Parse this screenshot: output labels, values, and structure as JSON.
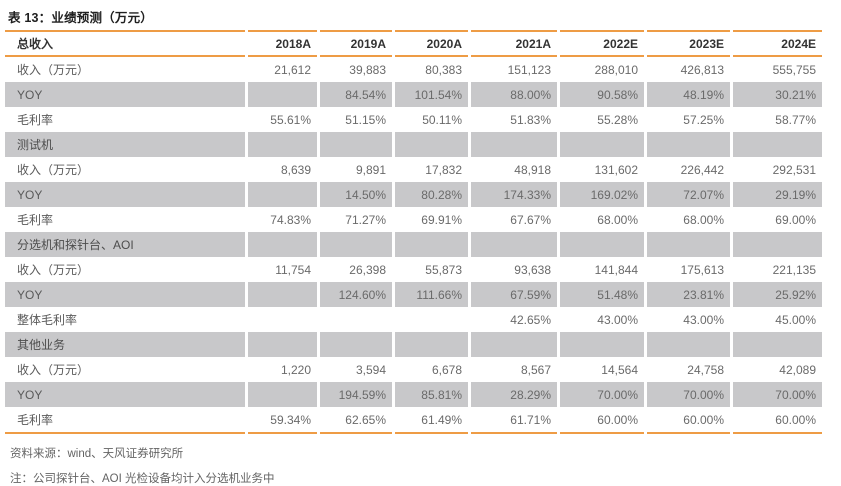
{
  "title": "表 13：业绩预测（万元）",
  "colors": {
    "accent_orange": "#ee9c45",
    "shaded_row": "#c8c8ca",
    "title_text": "#1f1f1f",
    "body_text": "#6a6a6a"
  },
  "chart_data": {
    "type": "table",
    "title": "表 13：业绩预测（万元）",
    "columns": [
      "总收入",
      "2018A",
      "2019A",
      "2020A",
      "2021A",
      "2022E",
      "2023E",
      "2024E"
    ],
    "rows": [
      {
        "type": "data",
        "label": "收入（万元）",
        "values": [
          "21,612",
          "39,883",
          "80,383",
          "151,123",
          "288,010",
          "426,813",
          "555,755"
        ]
      },
      {
        "type": "shaded",
        "label": "YOY",
        "values": [
          "",
          "84.54%",
          "101.54%",
          "88.00%",
          "90.58%",
          "48.19%",
          "30.21%"
        ]
      },
      {
        "type": "data",
        "label": "毛利率",
        "values": [
          "55.61%",
          "51.15%",
          "50.11%",
          "51.83%",
          "55.28%",
          "57.25%",
          "58.77%"
        ]
      },
      {
        "type": "section",
        "label": "测试机",
        "values": [
          "",
          "",
          "",
          "",
          "",
          "",
          ""
        ]
      },
      {
        "type": "data",
        "label": "收入（万元）",
        "values": [
          "8,639",
          "9,891",
          "17,832",
          "48,918",
          "131,602",
          "226,442",
          "292,531"
        ]
      },
      {
        "type": "shaded",
        "label": "YOY",
        "values": [
          "",
          "14.50%",
          "80.28%",
          "174.33%",
          "169.02%",
          "72.07%",
          "29.19%"
        ]
      },
      {
        "type": "data",
        "label": "毛利率",
        "values": [
          "74.83%",
          "71.27%",
          "69.91%",
          "67.67%",
          "68.00%",
          "68.00%",
          "69.00%"
        ]
      },
      {
        "type": "section",
        "label": "分选机和探针台、AOI",
        "values": [
          "",
          "",
          "",
          "",
          "",
          "",
          ""
        ]
      },
      {
        "type": "data",
        "label": "收入（万元）",
        "values": [
          "11,754",
          "26,398",
          "55,873",
          "93,638",
          "141,844",
          "175,613",
          "221,135"
        ]
      },
      {
        "type": "shaded",
        "label": "YOY",
        "values": [
          "",
          "124.60%",
          "111.66%",
          "67.59%",
          "51.48%",
          "23.81%",
          "25.92%"
        ]
      },
      {
        "type": "data",
        "label": "整体毛利率",
        "values": [
          "",
          "",
          "",
          "42.65%",
          "43.00%",
          "43.00%",
          "45.00%"
        ]
      },
      {
        "type": "section",
        "label": "其他业务",
        "values": [
          "",
          "",
          "",
          "",
          "",
          "",
          ""
        ]
      },
      {
        "type": "data",
        "label": "收入（万元）",
        "values": [
          "1,220",
          "3,594",
          "6,678",
          "8,567",
          "14,564",
          "24,758",
          "42,089"
        ]
      },
      {
        "type": "shaded",
        "label": "YOY",
        "values": [
          "",
          "194.59%",
          "85.81%",
          "28.29%",
          "70.00%",
          "70.00%",
          "70.00%"
        ]
      },
      {
        "type": "data",
        "label": "毛利率",
        "values": [
          "59.34%",
          "62.65%",
          "61.49%",
          "61.71%",
          "60.00%",
          "60.00%",
          "60.00%"
        ]
      }
    ]
  },
  "footer": {
    "source": "资料来源：wind、天风证券研究所",
    "note": "注：公司探针台、AOI 光检设备均计入分选机业务中"
  }
}
